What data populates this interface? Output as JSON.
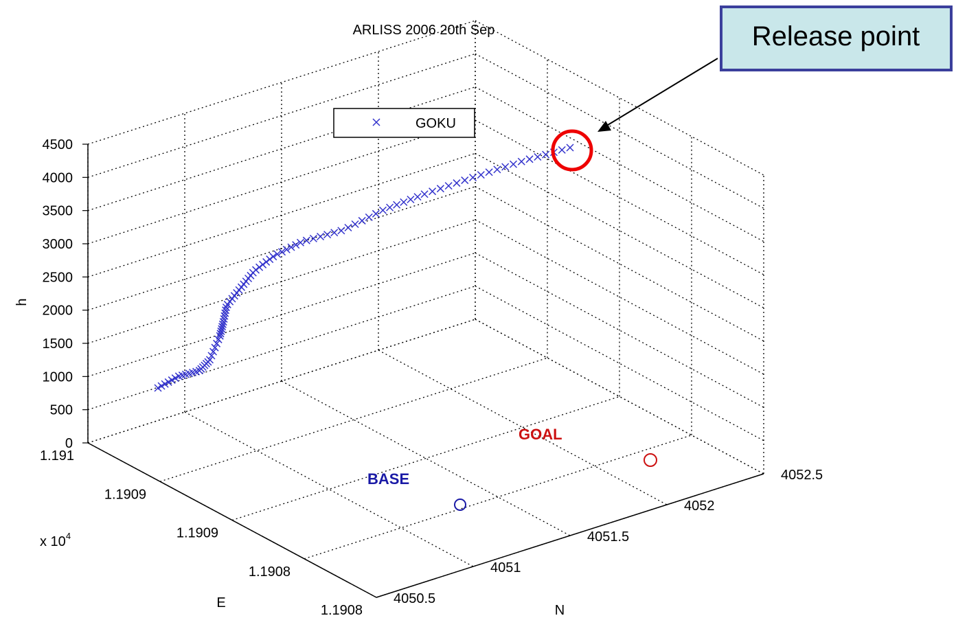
{
  "chart_data": {
    "type": "scatter",
    "title": "ARLISS 2006 20th Sep",
    "xlabel": "E",
    "ylabel": "N",
    "zlabel": "h",
    "x_multiplier": "x 10",
    "x_multiplier_exp": "4",
    "x_tick_labels": [
      "1.191",
      "1.1909",
      "1.1909",
      "1.1908",
      "1.1908"
    ],
    "y_tick_labels": [
      "4050.5",
      "4051",
      "4051.5",
      "4052",
      "4052.5"
    ],
    "z_tick_labels": [
      "0",
      "500",
      "1000",
      "1500",
      "2000",
      "2500",
      "3000",
      "3500",
      "4000",
      "4500"
    ],
    "zlim": [
      0,
      4500
    ],
    "grid": true,
    "legend": {
      "placement": "top-center",
      "entries": [
        "GOKU"
      ]
    },
    "series": [
      {
        "name": "GOKU",
        "marker": "x",
        "color": "#3333cc",
        "description_points": "trajectory descending from release point (~4300 m) to ~700 m",
        "h_samples": [
          4350,
          4300,
          4230,
          4150,
          4080,
          4010,
          3940,
          3870,
          3800,
          3730,
          3660,
          3590,
          3520,
          3450,
          3380,
          3300,
          3220,
          3140,
          3060,
          2980,
          2900,
          2820,
          2740,
          2660,
          2580,
          2500,
          2420,
          2340,
          2260,
          2180,
          2100,
          2020,
          1940,
          1860,
          1780,
          1700,
          1620,
          1540,
          1460,
          1380,
          1300,
          1220,
          1140,
          1060,
          980,
          900,
          820,
          750
        ]
      }
    ],
    "annotations": [
      {
        "text": "BASE",
        "color": "#1a1aa6",
        "marker": "o"
      },
      {
        "text": "GOAL",
        "color": "#cc1111",
        "marker": "o"
      }
    ],
    "callout": {
      "text": "Release point",
      "box_fill": "#c9e7ea",
      "box_border": "#3b3f9c",
      "circle_color": "#ee0000"
    }
  }
}
